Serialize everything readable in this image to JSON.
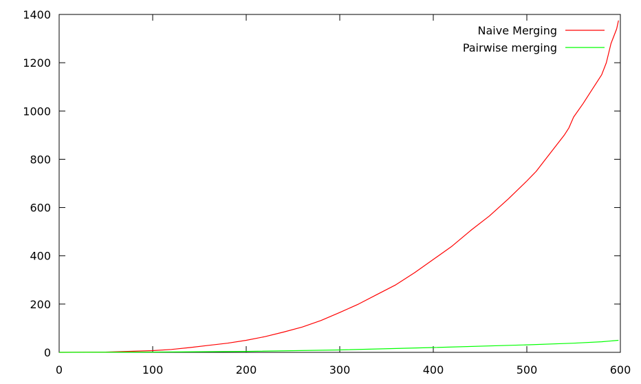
{
  "chart_data": {
    "type": "line",
    "xlim": [
      0,
      600
    ],
    "ylim": [
      0,
      1400
    ],
    "x_ticks": [
      "0",
      "100",
      "200",
      "300",
      "400",
      "500",
      "600"
    ],
    "y_ticks": [
      "0",
      "200",
      "400",
      "600",
      "800",
      "1000",
      "1200",
      "1400"
    ],
    "grid": false,
    "legend_position": "top-right",
    "series": [
      {
        "name": "Naive Merging",
        "color": "#ff0000",
        "x": [
          0,
          50,
          100,
          120,
          140,
          160,
          180,
          200,
          220,
          240,
          260,
          280,
          300,
          320,
          340,
          360,
          380,
          400,
          420,
          440,
          460,
          480,
          500,
          510,
          520,
          530,
          540,
          545,
          550,
          560,
          570,
          575,
          580,
          585,
          590,
          593,
          596,
          598
        ],
        "y": [
          0,
          1,
          7,
          12,
          20,
          29,
          38,
          50,
          65,
          84,
          105,
          132,
          165,
          200,
          240,
          280,
          330,
          385,
          440,
          505,
          565,
          635,
          710,
          750,
          800,
          850,
          900,
          930,
          975,
          1030,
          1090,
          1120,
          1150,
          1200,
          1280,
          1310,
          1340,
          1375
        ]
      },
      {
        "name": "Pairwise merging",
        "color": "#00ff00",
        "x": [
          0,
          100,
          200,
          300,
          400,
          500,
          550,
          580,
          598
        ],
        "y": [
          0,
          1,
          4,
          10,
          20,
          31,
          38,
          44,
          50
        ]
      }
    ]
  }
}
